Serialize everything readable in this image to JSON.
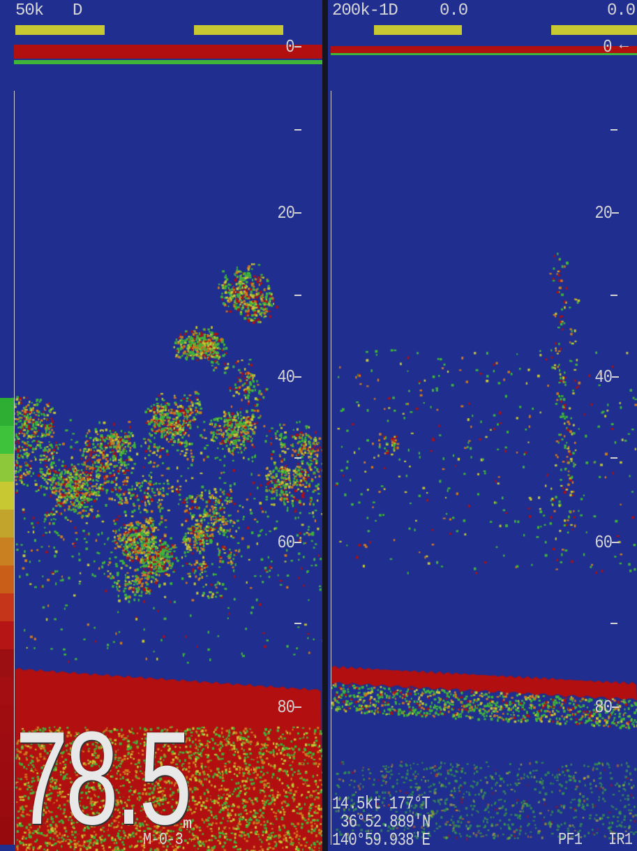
{
  "left_panel": {
    "frequency": "50k",
    "mode_letter": "D",
    "depth_labels": [
      "0",
      "20",
      "40",
      "60",
      "80"
    ],
    "big_depth": "78.5",
    "unit": "m",
    "mode_code": "M-0-3"
  },
  "right_panel": {
    "frequency": "200k-1D",
    "value_a": "0.0",
    "value_b": "0.0",
    "surface_arrow": "←",
    "depth_labels": [
      "0",
      "20",
      "40",
      "60",
      "80"
    ],
    "speed_heading": "14.5kt 177°T",
    "latitude": "36°52.889'N",
    "longitude": "140°59.938'E",
    "pf": "PF1",
    "ir": "IR1"
  },
  "colors": {
    "water": "#1f2e8f",
    "bottom_red": "#b10f10",
    "echo_green": "#3fb53a",
    "echo_yellow": "#c8c832",
    "echo_orange": "#d27a1e"
  },
  "color_scale": [
    "#2fae34",
    "#3fc23b",
    "#8cc83a",
    "#c8c832",
    "#c2a32b",
    "#c98020",
    "#c95e18",
    "#c4351a",
    "#b51515",
    "#9b0f12",
    "#a20e11",
    "#a00d10",
    "#9d0c10",
    "#9b0b0f",
    "#990b0f",
    "#960a0e"
  ]
}
